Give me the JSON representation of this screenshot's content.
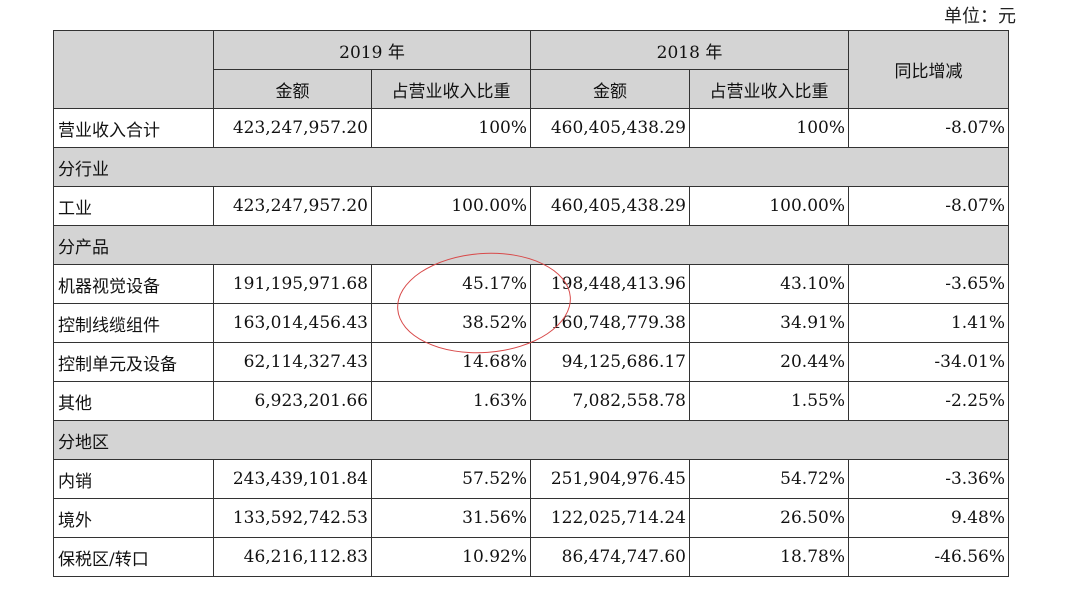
{
  "unit_label": "单位：元",
  "header": {
    "year_2019": "2019 年",
    "year_2018": "2018 年",
    "amount": "金额",
    "share": "占营业收入比重",
    "yoy": "同比增减"
  },
  "rows": [
    {
      "type": "data",
      "label": "营业收入合计",
      "amount_2019": "423,247,957.20",
      "share_2019": "100%",
      "amount_2018": "460,405,438.29",
      "share_2018": "100%",
      "yoy": "-8.07%"
    },
    {
      "type": "section",
      "label": "分行业"
    },
    {
      "type": "data",
      "label": "工业",
      "amount_2019": "423,247,957.20",
      "share_2019": "100.00%",
      "amount_2018": "460,405,438.29",
      "share_2018": "100.00%",
      "yoy": "-8.07%"
    },
    {
      "type": "section",
      "label": "分产品"
    },
    {
      "type": "data",
      "label": "机器视觉设备",
      "amount_2019": "191,195,971.68",
      "share_2019": "45.17%",
      "amount_2018": "198,448,413.96",
      "share_2018": "43.10%",
      "yoy": "-3.65%"
    },
    {
      "type": "data",
      "label": "控制线缆组件",
      "amount_2019": "163,014,456.43",
      "share_2019": "38.52%",
      "amount_2018": "160,748,779.38",
      "share_2018": "34.91%",
      "yoy": "1.41%"
    },
    {
      "type": "data",
      "label": "控制单元及设备",
      "amount_2019": "62,114,327.43",
      "share_2019": "14.68%",
      "amount_2018": "94,125,686.17",
      "share_2018": "20.44%",
      "yoy": "-34.01%"
    },
    {
      "type": "data",
      "label": "其他",
      "amount_2019": "6,923,201.66",
      "share_2019": "1.63%",
      "amount_2018": "7,082,558.78",
      "share_2018": "1.55%",
      "yoy": "-2.25%"
    },
    {
      "type": "section",
      "label": "分地区"
    },
    {
      "type": "data",
      "label": "内销",
      "amount_2019": "243,439,101.84",
      "share_2019": "57.52%",
      "amount_2018": "251,904,976.45",
      "share_2018": "54.72%",
      "yoy": "-3.36%"
    },
    {
      "type": "data",
      "label": "境外",
      "amount_2019": "133,592,742.53",
      "share_2019": "31.56%",
      "amount_2018": "122,025,714.24",
      "share_2018": "26.50%",
      "yoy": "9.48%"
    },
    {
      "type": "data",
      "label": "保税区/转口",
      "amount_2019": "46,216,112.83",
      "share_2019": "10.92%",
      "amount_2018": "86,474,747.60",
      "share_2018": "18.78%",
      "yoy": "-46.56%"
    }
  ],
  "annotation_color": "#d84a4a"
}
